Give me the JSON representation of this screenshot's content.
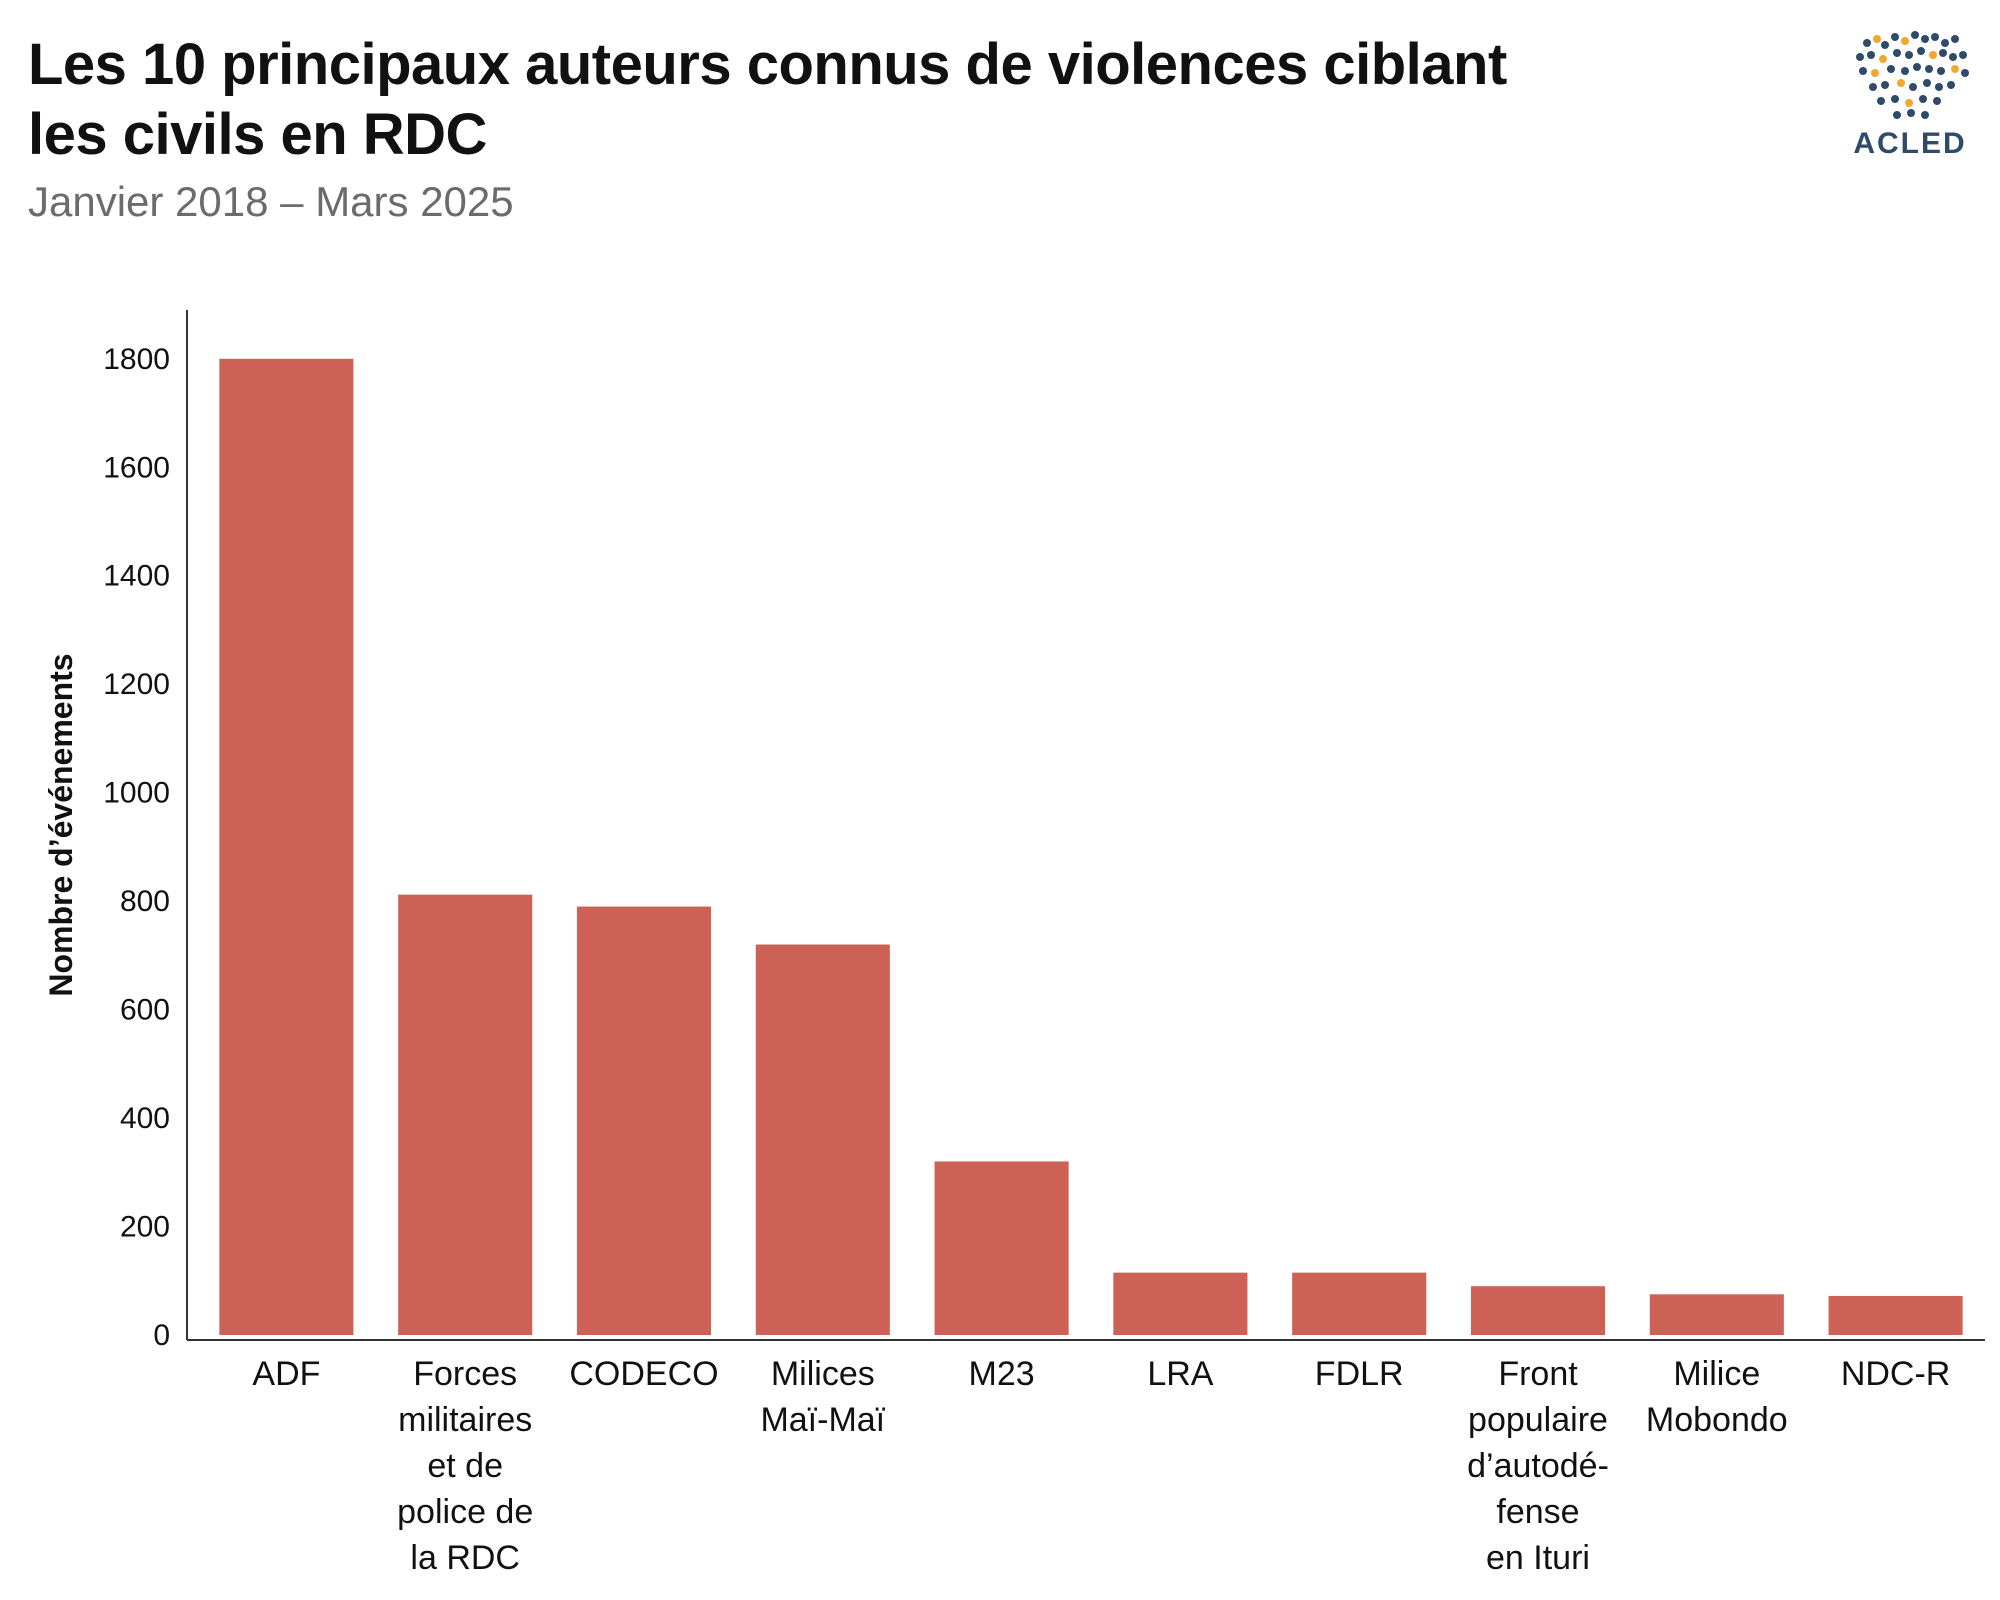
{
  "header": {
    "title_line1": "Les 10 principaux auteurs connus de violences ciblant",
    "title_line2": "les civils en RDC",
    "subtitle": "Janvier 2018 – Mars 2025"
  },
  "logo": {
    "text": "ACLED",
    "icon": "world-dots-logo-icon",
    "colors": {
      "dots_dark": "#2f4a6b",
      "dots_accent": "#f0a830"
    }
  },
  "chart_data": {
    "type": "bar",
    "title": "Les 10 principaux auteurs connus de violences ciblant les civils en RDC",
    "subtitle": "Janvier 2018 – Mars 2025",
    "xlabel": "",
    "ylabel": "Nombre d’événements",
    "ylim": [
      0,
      1890
    ],
    "yticks": [
      0,
      200,
      400,
      600,
      800,
      1000,
      1200,
      1400,
      1600,
      1800
    ],
    "bar_color": "#cd6155",
    "grid": false,
    "categories": [
      [
        "ADF"
      ],
      [
        "Forces",
        "militaires",
        "et de",
        "police de",
        "la RDC"
      ],
      [
        "CODECO"
      ],
      [
        "Milices",
        "Maï-Maï"
      ],
      [
        "M23"
      ],
      [
        "LRA"
      ],
      [
        "FDLR"
      ],
      [
        "Front",
        "populaire",
        "d’autodé-",
        "fense",
        "en Ituri"
      ],
      [
        "Milice",
        "Mobondo"
      ],
      [
        "NDC-R"
      ]
    ],
    "values": [
      1800,
      812,
      790,
      720,
      320,
      115,
      115,
      90,
      75,
      72
    ]
  }
}
